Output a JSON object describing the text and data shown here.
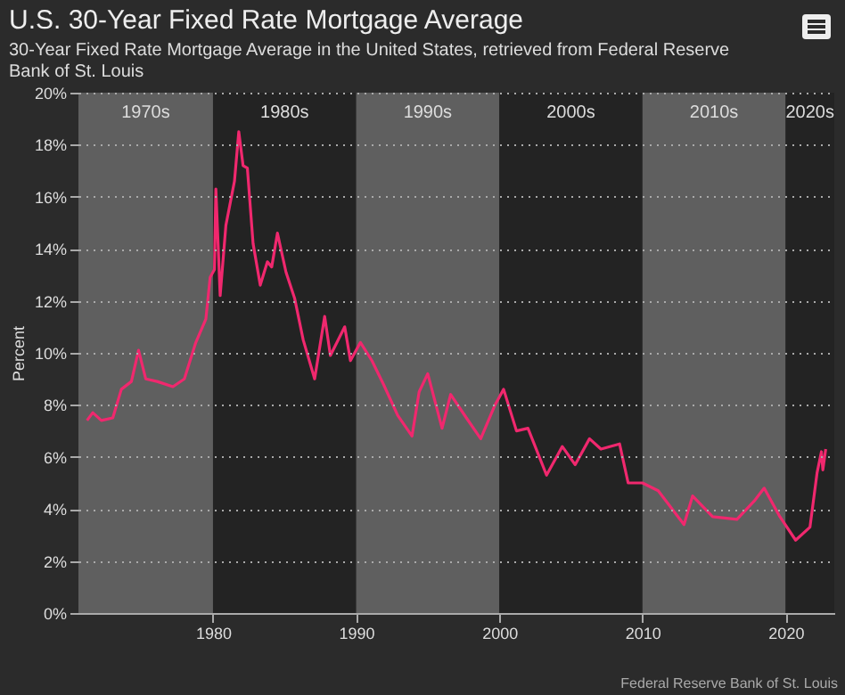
{
  "chart_data": {
    "type": "line",
    "title": "U.S. 30-Year Fixed Rate Mortgage Average",
    "subtitle": "30-Year Fixed Rate Mortgage Average in the United States, retrieved from Federal Reserve Bank of St. Louis",
    "ylabel": "Percent",
    "annotations": [
      "Federal Reserve Bank of St. Louis"
    ],
    "x": [
      1971.2,
      1971.6,
      1972.2,
      1973.0,
      1973.6,
      1974.3,
      1974.8,
      1975.3,
      1976.1,
      1977.2,
      1978.0,
      1978.8,
      1979.5,
      1979.8,
      1980.1,
      1980.2,
      1980.5,
      1980.9,
      1981.5,
      1981.8,
      1982.1,
      1982.4,
      1982.8,
      1983.3,
      1983.8,
      1984.1,
      1984.5,
      1985.1,
      1985.7,
      1986.3,
      1987.1,
      1987.8,
      1988.2,
      1989.2,
      1989.6,
      1990.3,
      1991.1,
      1991.9,
      1992.9,
      1993.9,
      1994.4,
      1995.0,
      1996.0,
      1996.6,
      1997.7,
      1998.7,
      1999.7,
      2000.3,
      2001.2,
      2002.0,
      2003.3,
      2004.4,
      2005.3,
      2006.3,
      2007.1,
      2008.4,
      2009.0,
      2010.0,
      2011.1,
      2012.9,
      2013.5,
      2014.9,
      2016.6,
      2017.8,
      2018.5,
      2019.6,
      2020.7,
      2021.7,
      2022.2,
      2022.5,
      2022.6,
      2022.8
    ],
    "series": [
      {
        "color": "#f0286e",
        "values": [
          7.4,
          7.7,
          7.4,
          7.5,
          8.6,
          8.9,
          10.1,
          9.0,
          8.9,
          8.7,
          9.0,
          10.4,
          11.3,
          12.9,
          13.2,
          16.3,
          12.2,
          14.9,
          16.6,
          18.5,
          17.2,
          17.1,
          14.2,
          12.6,
          13.5,
          13.3,
          14.6,
          13.1,
          12.1,
          10.5,
          9.0,
          11.4,
          9.9,
          11.0,
          9.7,
          10.4,
          9.7,
          8.8,
          7.6,
          6.8,
          8.5,
          9.2,
          7.1,
          8.4,
          7.5,
          6.7,
          8.0,
          8.6,
          7.0,
          7.1,
          5.3,
          6.4,
          5.7,
          6.7,
          6.3,
          6.5,
          5.0,
          5.0,
          4.7,
          3.4,
          4.5,
          3.7,
          3.6,
          4.3,
          4.8,
          3.7,
          2.8,
          3.3,
          5.4,
          6.2,
          5.5,
          6.3
        ]
      }
    ],
    "xlim": [
      1970.6,
      2023.4
    ],
    "xticks": [
      1980,
      1990,
      2000,
      2010,
      2020
    ],
    "ylim": [
      0,
      20
    ],
    "yticks": [
      {
        "value": 0,
        "label": "0%"
      },
      {
        "value": 2,
        "label": "2%"
      },
      {
        "value": 4,
        "label": "4%"
      },
      {
        "value": 6,
        "label": "6%"
      },
      {
        "value": 8,
        "label": "8%"
      },
      {
        "value": 10,
        "label": "10%"
      },
      {
        "value": 12,
        "label": "12%"
      },
      {
        "value": 14,
        "label": "14%"
      },
      {
        "value": 16,
        "label": "16%"
      },
      {
        "value": 18,
        "label": "18%"
      },
      {
        "value": 20,
        "label": "20%"
      }
    ],
    "bands": [
      {
        "axis": "x",
        "from": 1970.6,
        "to": 1980,
        "label": "1970s",
        "color": "#5f5f5f"
      },
      {
        "axis": "x",
        "from": 1980,
        "to": 1990,
        "label": "1980s",
        "color": "#232323"
      },
      {
        "axis": "x",
        "from": 1990,
        "to": 2000,
        "label": "1990s",
        "color": "#5f5f5f"
      },
      {
        "axis": "x",
        "from": 2000,
        "to": 2010,
        "label": "2000s",
        "color": "#232323"
      },
      {
        "axis": "x",
        "from": 2010,
        "to": 2020,
        "label": "2010s",
        "color": "#5f5f5f"
      },
      {
        "axis": "x",
        "from": 2020,
        "to": 2023.4,
        "label": "2020s",
        "color": "#232323"
      }
    ],
    "grid": "y"
  }
}
